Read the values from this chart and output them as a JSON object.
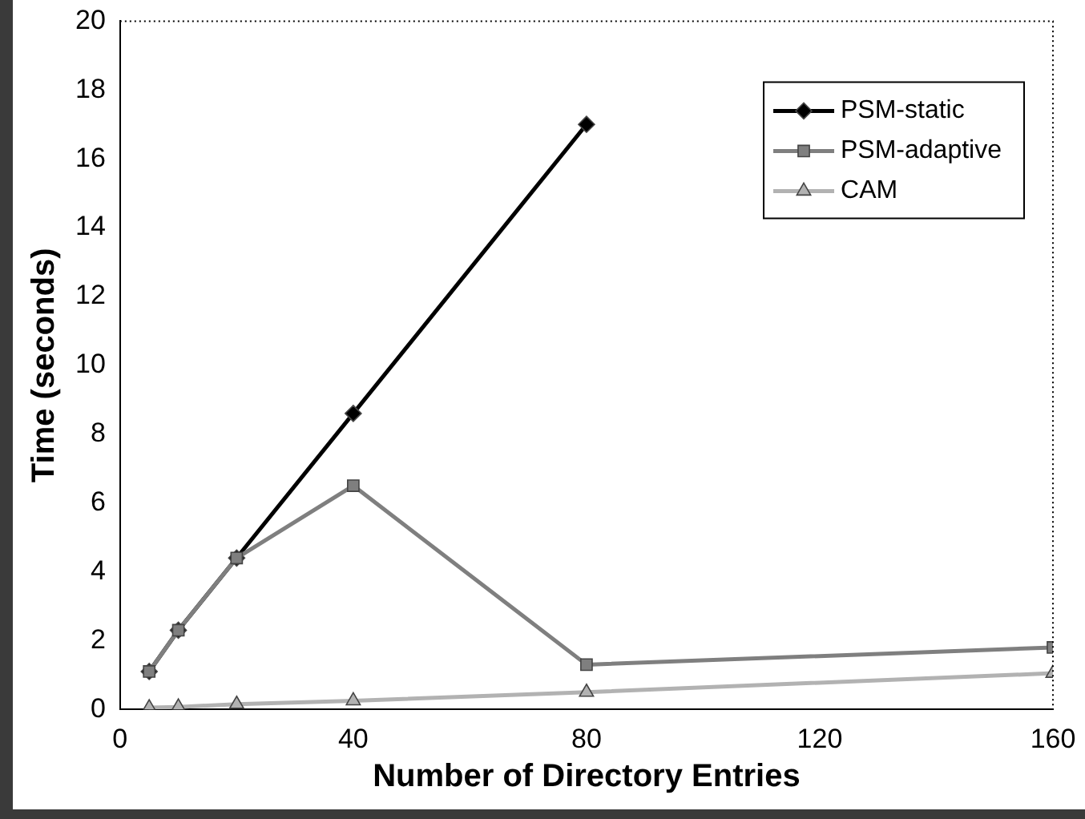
{
  "chart_data": {
    "type": "line",
    "xlabel": "Number of Directory Entries",
    "ylabel": "Time (seconds)",
    "x": [
      5,
      10,
      20,
      40,
      80,
      160
    ],
    "xlim": [
      0,
      160
    ],
    "xticks": [
      0,
      40,
      80,
      120,
      160
    ],
    "ylim": [
      0,
      20
    ],
    "yticks": [
      0,
      2,
      4,
      6,
      8,
      10,
      12,
      14,
      16,
      18,
      20
    ],
    "grid": false,
    "legend": "top right",
    "series": [
      {
        "name": "PSM-static",
        "color": "#000000",
        "marker": "diamond",
        "values": [
          1.1,
          2.3,
          4.4,
          8.6,
          17,
          null
        ]
      },
      {
        "name": "PSM-adaptive",
        "color": "#7f7f7f",
        "marker": "square",
        "values": [
          1.1,
          2.3,
          4.4,
          6.5,
          1.3,
          1.8
        ]
      },
      {
        "name": "CAM",
        "color": "#b2b2b2",
        "marker": "triangle",
        "values": [
          0.05,
          0.07,
          0.15,
          0.25,
          0.5,
          1.05
        ]
      }
    ]
  }
}
